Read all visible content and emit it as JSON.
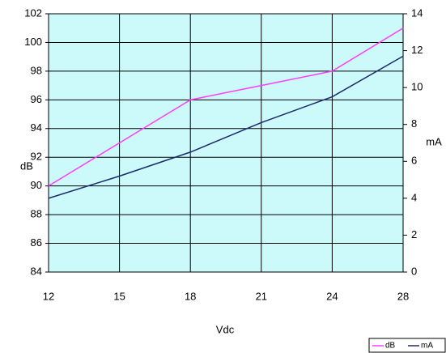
{
  "chart_data": {
    "type": "line",
    "categories": [
      "12",
      "15",
      "18",
      "21",
      "24",
      "28"
    ],
    "series": [
      {
        "name": "dB",
        "color": "#ff3cff",
        "values": [
          90,
          93,
          96,
          97,
          98,
          101
        ]
      },
      {
        "name": "mA",
        "color": "#1c2a6b",
        "values": [
          4.0,
          5.2,
          6.5,
          8.1,
          9.5,
          11.7
        ],
        "axis": "y2"
      }
    ],
    "ylim": [
      84,
      102
    ],
    "yticks": [
      84,
      86,
      88,
      90,
      92,
      94,
      96,
      98,
      100,
      102
    ],
    "y2lim": [
      0,
      14
    ],
    "y2ticks": [
      0,
      2,
      4,
      6,
      8,
      10,
      12,
      14
    ],
    "xlabel": "Vdc",
    "ylabel": "dB",
    "y2label": "mA",
    "grid": true,
    "legend": "bottom-right",
    "plot_background": "#ccf9f9"
  }
}
